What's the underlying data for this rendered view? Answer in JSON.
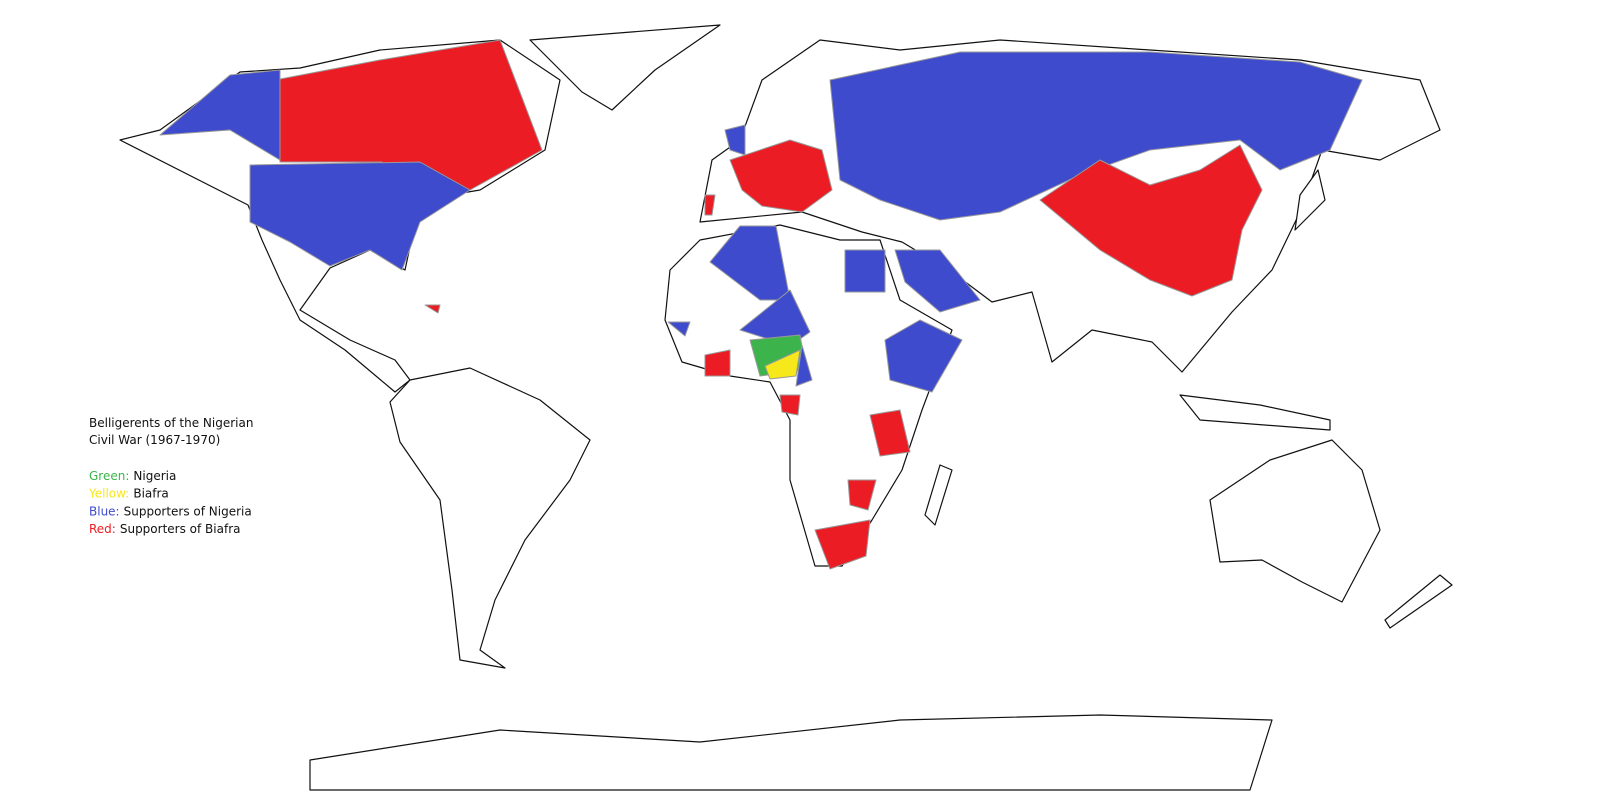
{
  "legend": {
    "title": [
      "Belligerents of the Nigerian",
      "Civil War (1967-1970)"
    ],
    "items": [
      {
        "key": "Green:",
        "label": "Nigeria",
        "color": "#3cb44b"
      },
      {
        "key": "Yellow:",
        "label": "Biafra",
        "color": "#f7e81c"
      },
      {
        "key": "Blue:",
        "label": "Supporters of Nigeria",
        "color": "#3f4bcd"
      },
      {
        "key": "Red:",
        "label": "Supporters of Biafra",
        "color": "#ec1c24"
      }
    ]
  }
}
